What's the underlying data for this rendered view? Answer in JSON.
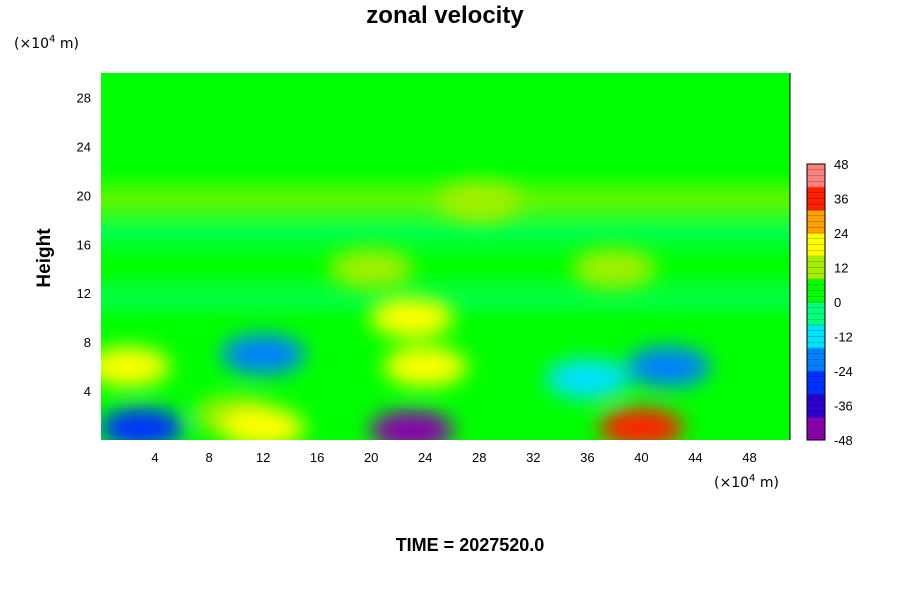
{
  "chart_data": {
    "type": "heatmap",
    "title": "zonal velocity",
    "xlabel": "",
    "ylabel": "Height",
    "x_unit": {
      "prefix": "(×10",
      "exp": "4",
      "suffix": " m)"
    },
    "y_unit": {
      "prefix": "(×10",
      "exp": "4",
      "suffix": " m)"
    },
    "xlim": [
      0,
      51
    ],
    "ylim": [
      0,
      30
    ],
    "x_ticks": [
      4,
      8,
      12,
      16,
      20,
      24,
      28,
      32,
      36,
      40,
      44,
      48
    ],
    "y_ticks": [
      4,
      8,
      12,
      16,
      20,
      24,
      28
    ],
    "colorbar": {
      "range": [
        -48,
        48
      ],
      "ticks": [
        48,
        36,
        24,
        12,
        0,
        -12,
        -24,
        -36,
        -48
      ],
      "colors": [
        "#8800aa",
        "#2a00cc",
        "#0030ff",
        "#0080ff",
        "#00e0ff",
        "#00ff80",
        "#00ff00",
        "#a0f000",
        "#ffff00",
        "#ffa000",
        "#ff2000",
        "#ff8080"
      ]
    },
    "features": [
      {
        "x": 3,
        "y": 1,
        "value": -30
      },
      {
        "x": 2,
        "y": 6,
        "value": 16
      },
      {
        "x": 10,
        "y": 2,
        "value": 12
      },
      {
        "x": 12,
        "y": 1,
        "value": 18
      },
      {
        "x": 12,
        "y": 7,
        "value": -24
      },
      {
        "x": 23,
        "y": 10,
        "value": 20
      },
      {
        "x": 24,
        "y": 6,
        "value": 18
      },
      {
        "x": 23,
        "y": 0.8,
        "value": -44
      },
      {
        "x": 40,
        "y": 1,
        "value": 38
      },
      {
        "x": 42,
        "y": 6,
        "value": -24
      },
      {
        "x": 36,
        "y": 5,
        "value": -14
      },
      {
        "x": 38,
        "y": 14,
        "value": 10
      },
      {
        "x": 20,
        "y": 14,
        "value": 8
      },
      {
        "x": 28,
        "y": 19.5,
        "value": 10
      }
    ]
  },
  "footer": {
    "time_label": "TIME = 2027520.0"
  }
}
